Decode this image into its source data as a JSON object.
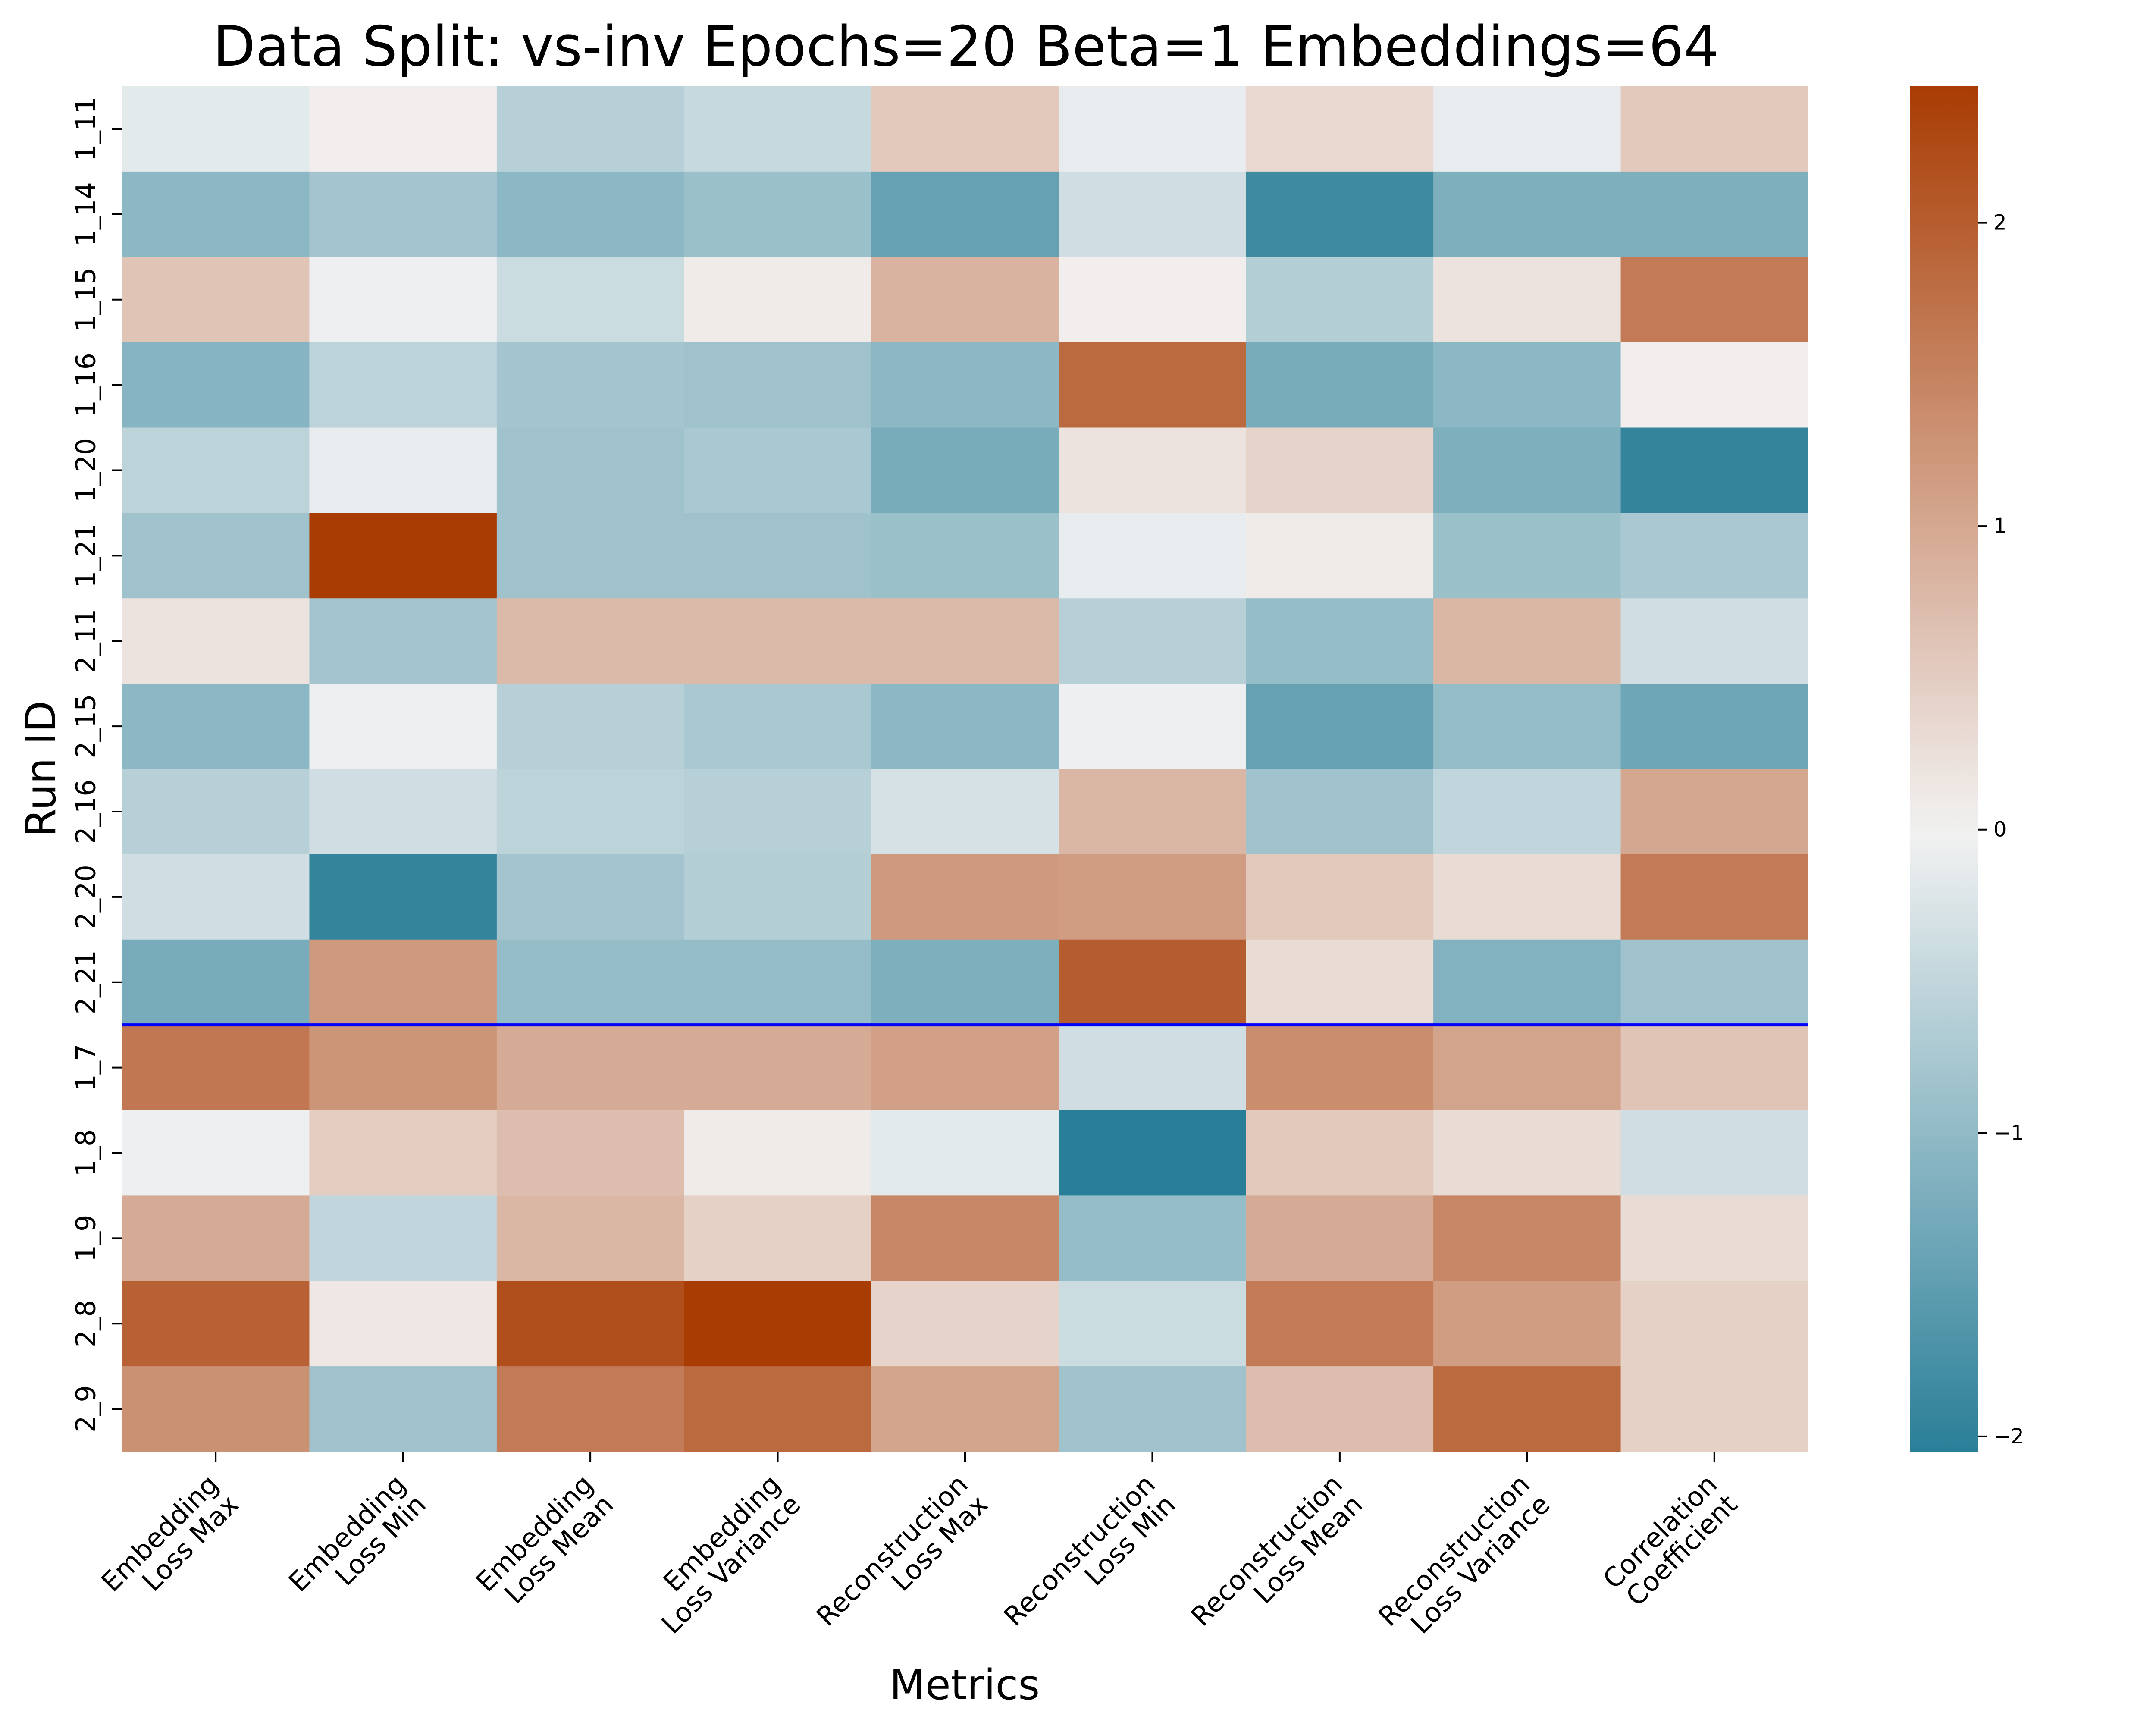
{
  "chart_data": {
    "type": "heatmap",
    "title": "Data Split: vs-inv Epochs=20 Beta=1 Embeddings=64",
    "xlabel": "Metrics",
    "ylabel": "Run ID",
    "x_categories": [
      [
        "Embedding",
        "Loss Max"
      ],
      [
        "Embedding",
        "Loss Min"
      ],
      [
        "Embedding",
        "Loss Mean"
      ],
      [
        "Embedding",
        "Loss Variance"
      ],
      [
        "Reconstruction",
        "Loss Max"
      ],
      [
        "Reconstruction",
        "Loss Min"
      ],
      [
        "Reconstruction",
        "Loss Mean"
      ],
      [
        "Reconstruction",
        "Loss Variance"
      ],
      [
        "Correlation",
        "Coefficient"
      ]
    ],
    "y_categories": [
      "1_11",
      "1_14",
      "1_15",
      "1_16",
      "1_20",
      "1_21",
      "2_11",
      "2_15",
      "2_16",
      "2_20",
      "2_21",
      "1_7",
      "1_8",
      "1_9",
      "2_8",
      "2_9"
    ],
    "values": [
      [
        -0.15,
        0.05,
        -0.6,
        -0.45,
        0.55,
        -0.1,
        0.35,
        -0.1,
        0.55
      ],
      [
        -1.05,
        -0.8,
        -1.05,
        -0.9,
        -1.45,
        -0.35,
        -1.85,
        -1.2,
        -1.2
      ],
      [
        0.6,
        -0.05,
        -0.4,
        0.1,
        0.85,
        0.05,
        -0.65,
        0.2,
        1.6
      ],
      [
        -1.1,
        -0.55,
        -0.8,
        -0.85,
        -1.05,
        1.85,
        -1.25,
        -1.05,
        0.05
      ],
      [
        -0.55,
        -0.1,
        -0.85,
        -0.75,
        -1.25,
        0.2,
        0.4,
        -1.2,
        -1.95
      ],
      [
        -0.85,
        2.45,
        -0.85,
        -0.85,
        -0.9,
        -0.1,
        0.1,
        -0.9,
        -0.75
      ],
      [
        0.2,
        -0.8,
        0.75,
        0.75,
        0.75,
        -0.6,
        -0.95,
        0.8,
        -0.35
      ],
      [
        -1.05,
        -0.05,
        -0.6,
        -0.75,
        -1.05,
        -0.05,
        -1.45,
        -0.95,
        -1.35
      ],
      [
        -0.6,
        -0.35,
        -0.55,
        -0.6,
        -0.3,
        0.8,
        -0.85,
        -0.5,
        1.0
      ],
      [
        -0.35,
        -1.95,
        -0.8,
        -0.65,
        1.2,
        1.15,
        0.55,
        0.3,
        1.6
      ],
      [
        -1.25,
        1.2,
        -0.95,
        -0.95,
        -1.2,
        2.0,
        0.3,
        -1.15,
        -0.85
      ],
      [
        1.65,
        1.25,
        0.95,
        0.95,
        1.1,
        -0.35,
        1.35,
        1.05,
        0.6
      ],
      [
        -0.05,
        0.5,
        0.7,
        0.1,
        -0.15,
        -2.05,
        0.55,
        0.3,
        -0.35
      ],
      [
        0.95,
        -0.5,
        0.8,
        0.45,
        1.45,
        -0.95,
        0.95,
        1.45,
        0.3
      ],
      [
        1.95,
        0.15,
        2.2,
        2.45,
        0.4,
        -0.4,
        1.6,
        1.15,
        0.45
      ],
      [
        1.3,
        -0.85,
        1.6,
        1.85,
        1.05,
        -0.85,
        0.7,
        1.85,
        0.45
      ]
    ],
    "color_range": [
      -2.05,
      2.45
    ],
    "colormap": {
      "low": "#2a7f98",
      "mid": "#f2f2f2",
      "high": "#a93c03"
    },
    "colorbar_ticks": [
      -2,
      -1,
      0,
      1,
      2
    ],
    "separator_after_row": 10,
    "separator_color": "#0000ff",
    "grid": false,
    "legend": "colorbar-right"
  }
}
